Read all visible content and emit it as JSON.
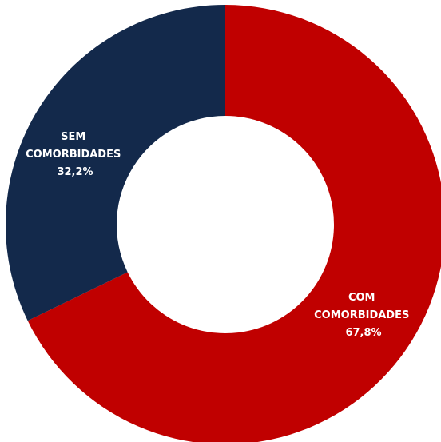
{
  "chart_data": {
    "type": "pie",
    "donut": true,
    "slices": [
      {
        "label": [
          "COM",
          "COMORBIDADES"
        ],
        "value": 67.8,
        "value_label": "67,8%",
        "color": "#c00000"
      },
      {
        "label": [
          "SEM",
          "COMORBIDADES"
        ],
        "value": 32.2,
        "value_label": "32,2%",
        "color": "#13294b"
      }
    ]
  }
}
